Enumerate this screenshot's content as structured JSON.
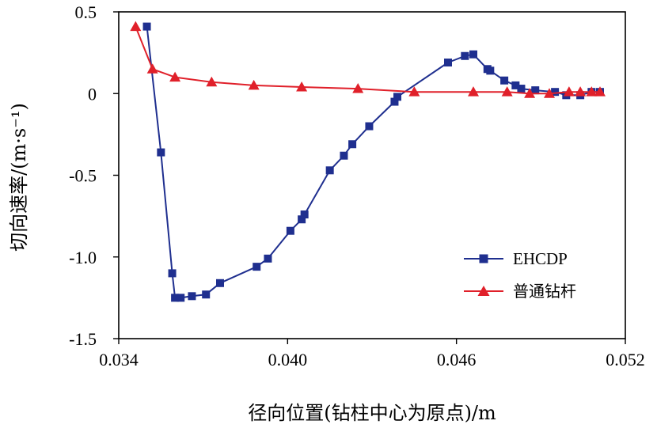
{
  "chart_data": {
    "type": "line",
    "title": "",
    "xlabel": "径向位置(钻柱中心为原点)/m",
    "ylabel": "切向速率/(m·s⁻¹)",
    "xlim": [
      0.034,
      0.052
    ],
    "ylim": [
      -1.5,
      0.5
    ],
    "xticks": [
      "0.034",
      "0.040",
      "0.046",
      "0.052"
    ],
    "yticks": [
      "0.5",
      "0",
      "-0.5",
      "-1.0",
      "-1.5"
    ],
    "xtick_values": [
      0.034,
      0.04,
      0.046,
      0.052
    ],
    "ytick_values": [
      0.5,
      0,
      -0.5,
      -1.0,
      -1.5
    ],
    "grid": false,
    "legend_position": "bottom-right",
    "series": [
      {
        "name": "EHCDP",
        "color": "#1f2f8f",
        "marker": "square",
        "x": [
          0.035,
          0.0355,
          0.0359,
          0.036,
          0.0362,
          0.0366,
          0.0371,
          0.0376,
          0.0389,
          0.0393,
          0.0401,
          0.0405,
          0.0406,
          0.0415,
          0.042,
          0.0423,
          0.0429,
          0.0438,
          0.0439,
          0.0457,
          0.0463,
          0.0466,
          0.0471,
          0.0472,
          0.0477,
          0.0481,
          0.0483,
          0.0488,
          0.0495,
          0.0499,
          0.0504,
          0.0508,
          0.0511
        ],
        "y": [
          0.41,
          -0.36,
          -1.1,
          -1.25,
          -1.25,
          -1.24,
          -1.23,
          -1.16,
          -1.06,
          -1.01,
          -0.84,
          -0.77,
          -0.74,
          -0.47,
          -0.38,
          -0.31,
          -0.2,
          -0.05,
          -0.02,
          0.19,
          0.23,
          0.24,
          0.15,
          0.14,
          0.08,
          0.05,
          0.03,
          0.02,
          0.01,
          -0.01,
          -0.01,
          0.01,
          0.01
        ]
      },
      {
        "name": "普通钻杆",
        "color": "#e0202a",
        "marker": "triangle",
        "x": [
          0.0346,
          0.0352,
          0.036,
          0.0373,
          0.0388,
          0.0405,
          0.0425,
          0.0445,
          0.0466,
          0.0478,
          0.0486,
          0.0493,
          0.05,
          0.0504,
          0.0508,
          0.0511
        ],
        "y": [
          0.41,
          0.15,
          0.1,
          0.07,
          0.05,
          0.04,
          0.03,
          0.01,
          0.01,
          0.01,
          0.0,
          0.0,
          0.01,
          0.01,
          0.01,
          0.01
        ]
      }
    ]
  }
}
